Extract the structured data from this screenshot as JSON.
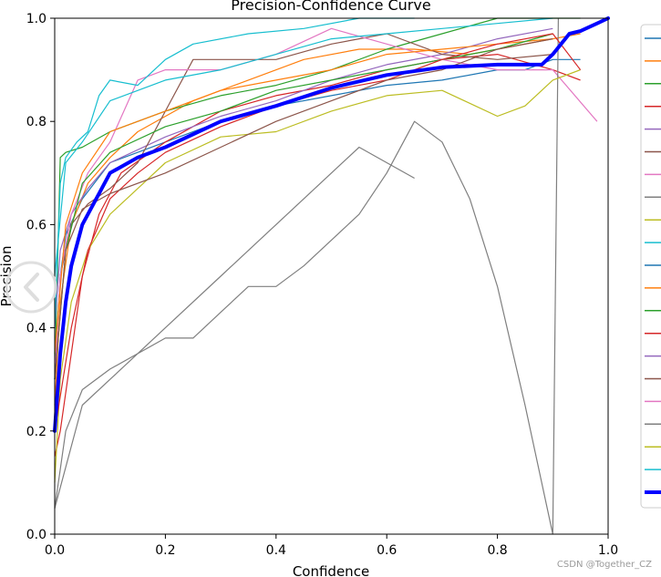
{
  "watermark": "CSDN @Together_CZ",
  "chart_data": {
    "type": "line",
    "title": "Precision-Confidence Curve",
    "xlabel": "Confidence",
    "ylabel": "Precision",
    "xlim": [
      0,
      1
    ],
    "ylim": [
      0,
      1
    ],
    "xticks": [
      "0.0",
      "0.2",
      "0.4",
      "0.6",
      "0.8",
      "1.0"
    ],
    "yticks": [
      "0.0",
      "0.2",
      "0.4",
      "0.6",
      "0.8",
      "1.0"
    ],
    "grid": false,
    "legend": "right (cut off, labels not visible)",
    "series": [
      {
        "color": "#1f77b4",
        "x": [
          0,
          0.01,
          0.02,
          0.05,
          0.1,
          0.2,
          0.3,
          0.4,
          0.5,
          0.6,
          0.7,
          0.8,
          0.85,
          0.9,
          0.95
        ],
        "y": [
          0.3,
          0.5,
          0.58,
          0.65,
          0.72,
          0.76,
          0.8,
          0.83,
          0.85,
          0.87,
          0.88,
          0.9,
          0.9,
          0.92,
          0.92
        ]
      },
      {
        "color": "#ff7f0e",
        "x": [
          0,
          0.01,
          0.03,
          0.06,
          0.1,
          0.15,
          0.25,
          0.35,
          0.45,
          0.55,
          0.65,
          0.75,
          0.85,
          0.9,
          0.95
        ],
        "y": [
          0.25,
          0.45,
          0.6,
          0.68,
          0.73,
          0.78,
          0.84,
          0.88,
          0.92,
          0.94,
          0.94,
          0.93,
          0.95,
          0.96,
          0.97
        ]
      },
      {
        "color": "#2ca02c",
        "x": [
          0,
          0.01,
          0.02,
          0.05,
          0.1,
          0.2,
          0.3,
          0.4,
          0.5,
          0.6,
          0.7,
          0.8,
          0.9,
          0.95
        ],
        "y": [
          0.3,
          0.73,
          0.74,
          0.75,
          0.78,
          0.82,
          0.85,
          0.87,
          0.9,
          0.94,
          0.97,
          1.0,
          1.0,
          1.0
        ]
      },
      {
        "color": "#d62728",
        "x": [
          0,
          0.01,
          0.03,
          0.05,
          0.08,
          0.12,
          0.2,
          0.3,
          0.4,
          0.5,
          0.6,
          0.7,
          0.8,
          0.9,
          0.95
        ],
        "y": [
          0.15,
          0.2,
          0.35,
          0.5,
          0.62,
          0.7,
          0.76,
          0.82,
          0.85,
          0.87,
          0.9,
          0.92,
          0.93,
          0.9,
          0.88
        ]
      },
      {
        "color": "#9467bd",
        "x": [
          0,
          0.01,
          0.03,
          0.06,
          0.1,
          0.2,
          0.3,
          0.4,
          0.5,
          0.6,
          0.7,
          0.8,
          0.9
        ],
        "y": [
          0.4,
          0.55,
          0.62,
          0.67,
          0.72,
          0.77,
          0.81,
          0.84,
          0.88,
          0.91,
          0.93,
          0.96,
          0.98
        ]
      },
      {
        "color": "#8c564b",
        "x": [
          0,
          0.01,
          0.03,
          0.06,
          0.1,
          0.15,
          0.2,
          0.25,
          0.3,
          0.4,
          0.5,
          0.6,
          0.7,
          0.8,
          0.9
        ],
        "y": [
          0.3,
          0.5,
          0.6,
          0.64,
          0.67,
          0.72,
          0.82,
          0.92,
          0.92,
          0.92,
          0.95,
          0.97,
          0.93,
          0.92,
          0.93
        ]
      },
      {
        "color": "#e377c2",
        "x": [
          0,
          0.01,
          0.03,
          0.06,
          0.1,
          0.15,
          0.2,
          0.3,
          0.4,
          0.5,
          0.6,
          0.7,
          0.8,
          0.9,
          0.98
        ],
        "y": [
          0.3,
          0.5,
          0.62,
          0.7,
          0.76,
          0.88,
          0.9,
          0.9,
          0.93,
          0.98,
          0.95,
          0.92,
          0.9,
          0.9,
          0.8
        ]
      },
      {
        "color": "#7f7f7f",
        "x": [
          0,
          0.02,
          0.05,
          0.1,
          0.15,
          0.2,
          0.25,
          0.3,
          0.35,
          0.4,
          0.45,
          0.5,
          0.55,
          0.6,
          0.65,
          0.7,
          0.75,
          0.8,
          0.85,
          0.9,
          0.91
        ],
        "y": [
          0.05,
          0.2,
          0.28,
          0.32,
          0.35,
          0.38,
          0.38,
          0.43,
          0.48,
          0.48,
          0.52,
          0.57,
          0.62,
          0.7,
          0.8,
          0.76,
          0.65,
          0.48,
          0.25,
          0.0,
          1.0
        ]
      },
      {
        "color": "#7f7f7f",
        "x": [
          0,
          0.05,
          0.1,
          0.2,
          0.3,
          0.4,
          0.5,
          0.55,
          0.6,
          0.65
        ],
        "y": [
          0.05,
          0.25,
          0.3,
          0.4,
          0.5,
          0.6,
          0.7,
          0.75,
          0.72,
          0.69
        ]
      },
      {
        "color": "#bcbd22",
        "x": [
          0,
          0.01,
          0.03,
          0.06,
          0.1,
          0.15,
          0.2,
          0.3,
          0.4,
          0.5,
          0.6,
          0.7,
          0.8,
          0.85,
          0.9,
          0.95
        ],
        "y": [
          0.1,
          0.3,
          0.45,
          0.55,
          0.62,
          0.67,
          0.72,
          0.77,
          0.78,
          0.82,
          0.85,
          0.86,
          0.81,
          0.83,
          0.88,
          0.9
        ]
      },
      {
        "color": "#17becf",
        "x": [
          0,
          0.01,
          0.02,
          0.04,
          0.06,
          0.08,
          0.1,
          0.15,
          0.2,
          0.25,
          0.35,
          0.45,
          0.55,
          0.65
        ],
        "y": [
          0.4,
          0.68,
          0.73,
          0.76,
          0.78,
          0.85,
          0.88,
          0.87,
          0.92,
          0.95,
          0.97,
          0.98,
          1.0,
          1.0
        ]
      },
      {
        "color": "#17becf",
        "x": [
          0,
          0.02,
          0.05,
          0.1,
          0.2,
          0.3,
          0.4,
          0.5,
          0.6,
          0.7,
          0.8,
          0.9
        ],
        "y": [
          0.5,
          0.72,
          0.76,
          0.84,
          0.88,
          0.9,
          0.93,
          0.96,
          0.97,
          0.98,
          0.99,
          1.0
        ]
      },
      {
        "color": "#ff7f0e",
        "x": [
          0,
          0.02,
          0.05,
          0.1,
          0.2,
          0.3,
          0.4,
          0.5,
          0.6,
          0.7,
          0.8,
          0.9
        ],
        "y": [
          0.35,
          0.6,
          0.7,
          0.78,
          0.82,
          0.86,
          0.88,
          0.9,
          0.93,
          0.94,
          0.95,
          0.96
        ]
      },
      {
        "color": "#2ca02c",
        "x": [
          0,
          0.02,
          0.05,
          0.1,
          0.2,
          0.3,
          0.4,
          0.5,
          0.6,
          0.7,
          0.8,
          0.9
        ],
        "y": [
          0.3,
          0.55,
          0.68,
          0.74,
          0.79,
          0.82,
          0.86,
          0.88,
          0.9,
          0.92,
          0.94,
          0.97
        ]
      },
      {
        "color": "#d62728",
        "x": [
          0,
          0.03,
          0.06,
          0.1,
          0.15,
          0.2,
          0.3,
          0.4,
          0.5,
          0.6,
          0.7,
          0.8,
          0.9,
          0.95
        ],
        "y": [
          0.2,
          0.4,
          0.55,
          0.65,
          0.7,
          0.74,
          0.79,
          0.83,
          0.86,
          0.88,
          0.92,
          0.95,
          0.97,
          0.9
        ]
      },
      {
        "color": "#8c564b",
        "x": [
          0,
          0.02,
          0.05,
          0.1,
          0.2,
          0.3,
          0.4,
          0.5,
          0.6,
          0.7,
          0.8,
          0.9
        ],
        "y": [
          0.3,
          0.55,
          0.63,
          0.66,
          0.7,
          0.75,
          0.8,
          0.84,
          0.88,
          0.9,
          0.94,
          0.96
        ]
      }
    ],
    "highlight": {
      "color": "#0000ff",
      "x": [
        0,
        0.01,
        0.02,
        0.03,
        0.05,
        0.08,
        0.1,
        0.15,
        0.2,
        0.3,
        0.4,
        0.5,
        0.6,
        0.7,
        0.8,
        0.88,
        0.9,
        0.93,
        0.95,
        0.98,
        1.0
      ],
      "y": [
        0.2,
        0.35,
        0.45,
        0.52,
        0.6,
        0.66,
        0.7,
        0.73,
        0.75,
        0.8,
        0.83,
        0.865,
        0.89,
        0.905,
        0.91,
        0.91,
        0.93,
        0.97,
        0.975,
        0.99,
        1.0
      ]
    },
    "legend_colors": [
      "#1f77b4",
      "#ff7f0e",
      "#2ca02c",
      "#d62728",
      "#9467bd",
      "#8c564b",
      "#e377c2",
      "#7f7f7f",
      "#bcbd22",
      "#17becf",
      "#1f77b4",
      "#ff7f0e",
      "#2ca02c",
      "#d62728",
      "#9467bd",
      "#8c564b",
      "#e377c2",
      "#7f7f7f",
      "#bcbd22",
      "#17becf",
      "#0000ff"
    ]
  }
}
